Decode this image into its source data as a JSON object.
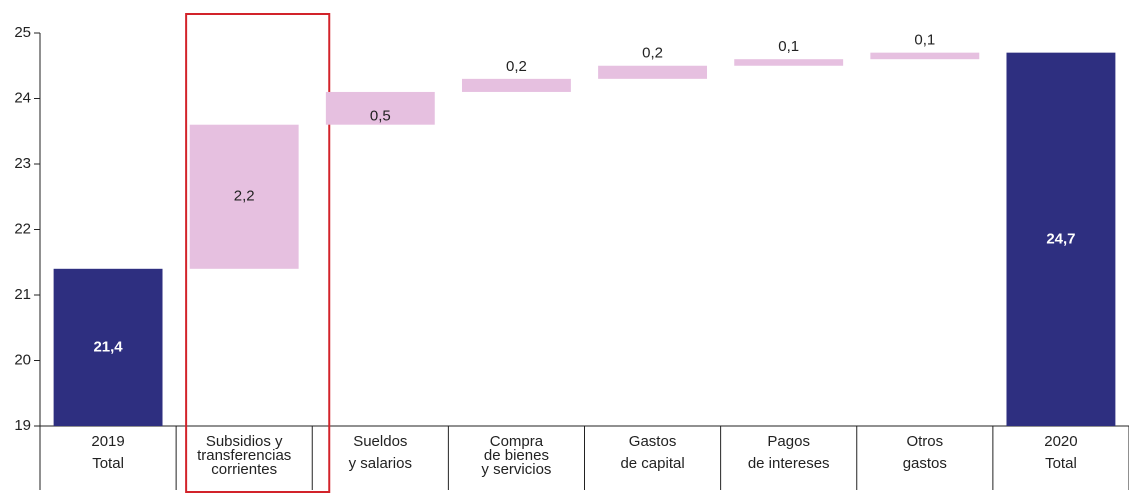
{
  "chart_data": {
    "type": "waterfall",
    "categories": [
      [
        "2019",
        "Total"
      ],
      [
        "Subsidios y",
        "transferencias",
        "corrientes"
      ],
      [
        "Sueldos",
        "y salarios"
      ],
      [
        "Compra",
        "de bienes",
        "y servicios"
      ],
      [
        "Gastos",
        "de capital"
      ],
      [
        "Pagos",
        "de intereses"
      ],
      [
        "Otros",
        "gastos"
      ],
      [
        "2020",
        "Total"
      ]
    ],
    "values": [
      21.4,
      2.2,
      0.5,
      0.2,
      0.2,
      0.1,
      0.1,
      24.7
    ],
    "value_labels": [
      "21,4",
      "2,2",
      "0,5",
      "0,2",
      "0,2",
      "0,1",
      "0,1",
      "24,7"
    ],
    "measures": [
      "absolute",
      "relative",
      "relative",
      "relative",
      "relative",
      "relative",
      "relative",
      "absolute"
    ],
    "total_color": "#2e2f80",
    "increase_color": "#e6c0e0",
    "highlight_index": 1,
    "highlight_color": "#d2232a",
    "ylim": [
      19,
      25
    ],
    "yticks": [
      19,
      20,
      21,
      22,
      23,
      24,
      25
    ]
  }
}
